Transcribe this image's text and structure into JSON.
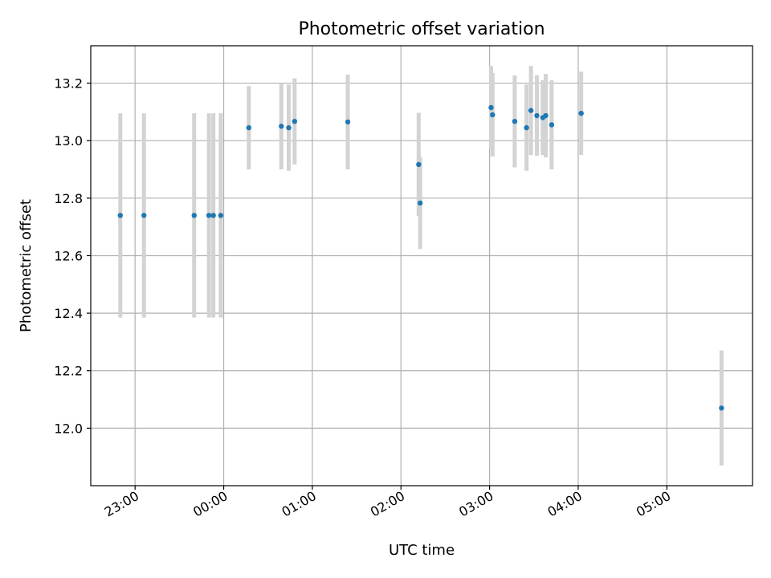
{
  "chart_data": {
    "type": "scatter",
    "title": "Photometric offset variation",
    "xlabel": "UTC time",
    "ylabel": "Photometric offset",
    "xlim": [
      "22:30",
      "05:58"
    ],
    "ylim": [
      11.8,
      13.33
    ],
    "grid": true,
    "x_ticks": [
      "23:00",
      "00:00",
      "01:00",
      "02:00",
      "03:00",
      "04:00",
      "05:00"
    ],
    "y_ticks": [
      "12.0",
      "12.2",
      "12.4",
      "12.6",
      "12.8",
      "13.0",
      "13.2"
    ],
    "series": [
      {
        "marker_color": "#1f77b4",
        "errorbar_color": "#d3d3d3",
        "points": [
          {
            "x": "22:50",
            "y": 12.74,
            "err": 0.355
          },
          {
            "x": "23:06",
            "y": 12.74,
            "err": 0.355
          },
          {
            "x": "23:40",
            "y": 12.74,
            "err": 0.355
          },
          {
            "x": "23:50",
            "y": 12.74,
            "err": 0.355
          },
          {
            "x": "23:53",
            "y": 12.74,
            "err": 0.355
          },
          {
            "x": "23:58",
            "y": 12.74,
            "err": 0.355
          },
          {
            "x": "00:17",
            "y": 13.045,
            "err": 0.145
          },
          {
            "x": "00:39",
            "y": 13.05,
            "err": 0.15
          },
          {
            "x": "00:44",
            "y": 13.045,
            "err": 0.15
          },
          {
            "x": "00:48",
            "y": 13.067,
            "err": 0.15
          },
          {
            "x": "01:24",
            "y": 13.065,
            "err": 0.165
          },
          {
            "x": "02:12",
            "y": 12.917,
            "err": 0.18
          },
          {
            "x": "02:13",
            "y": 12.783,
            "err": 0.16
          },
          {
            "x": "03:01",
            "y": 13.115,
            "err": 0.145
          },
          {
            "x": "03:02",
            "y": 13.09,
            "err": 0.145
          },
          {
            "x": "03:17",
            "y": 13.067,
            "err": 0.16
          },
          {
            "x": "03:25",
            "y": 13.045,
            "err": 0.15
          },
          {
            "x": "03:28",
            "y": 13.105,
            "err": 0.155
          },
          {
            "x": "03:32",
            "y": 13.087,
            "err": 0.14
          },
          {
            "x": "03:36",
            "y": 13.08,
            "err": 0.13
          },
          {
            "x": "03:38",
            "y": 13.087,
            "err": 0.145
          },
          {
            "x": "03:42",
            "y": 13.055,
            "err": 0.155
          },
          {
            "x": "04:02",
            "y": 13.095,
            "err": 0.145
          },
          {
            "x": "05:37",
            "y": 12.07,
            "err": 0.2
          }
        ]
      }
    ]
  }
}
